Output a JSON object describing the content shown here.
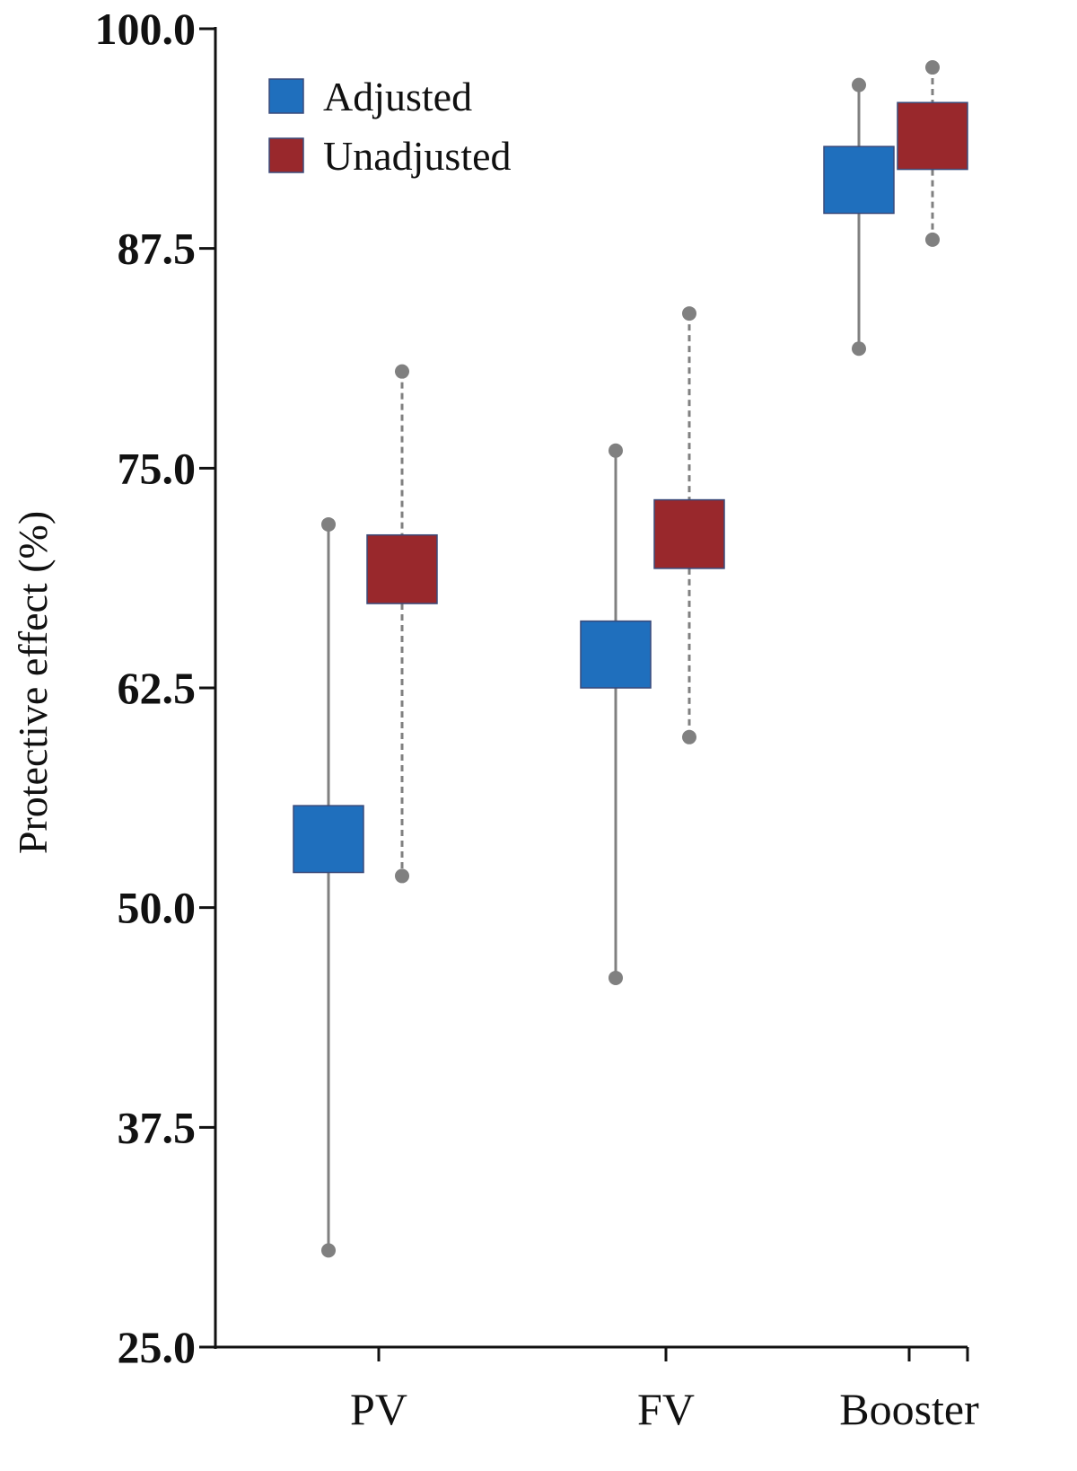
{
  "chart_data": {
    "type": "box",
    "title": "",
    "xlabel": "",
    "ylabel": "Protective effect (%)",
    "ylim": [
      25.0,
      100.0
    ],
    "yticks": [
      "100.0",
      "87.5",
      "75.0",
      "62.5",
      "50.0",
      "37.5",
      "25.0"
    ],
    "ytick_values": [
      100.0,
      87.5,
      75.0,
      62.5,
      50.0,
      37.5,
      25.0
    ],
    "categories": [
      "PV",
      "FV",
      "Booster"
    ],
    "legend_position": "top-left",
    "series": [
      {
        "name": "Adjusted",
        "color": "#1f6fbd",
        "whisker_style": "solid",
        "boxes": [
          {
            "category": "PV",
            "low": 30.5,
            "q1": 52.0,
            "q3": 55.8,
            "high": 71.8
          },
          {
            "category": "FV",
            "low": 46.0,
            "q1": 62.5,
            "q3": 66.3,
            "high": 76.0
          },
          {
            "category": "Booster",
            "low": 81.8,
            "q1": 89.5,
            "q3": 93.3,
            "high": 96.8
          }
        ]
      },
      {
        "name": "Unadjusted",
        "color": "#99282c",
        "whisker_style": "dashed",
        "boxes": [
          {
            "category": "PV",
            "low": 51.8,
            "q1": 67.3,
            "q3": 71.2,
            "high": 80.5
          },
          {
            "category": "FV",
            "low": 59.7,
            "q1": 69.3,
            "q3": 73.2,
            "high": 83.8
          },
          {
            "category": "Booster",
            "low": 88.0,
            "q1": 92.0,
            "q3": 95.8,
            "high": 97.8
          }
        ]
      }
    ]
  }
}
